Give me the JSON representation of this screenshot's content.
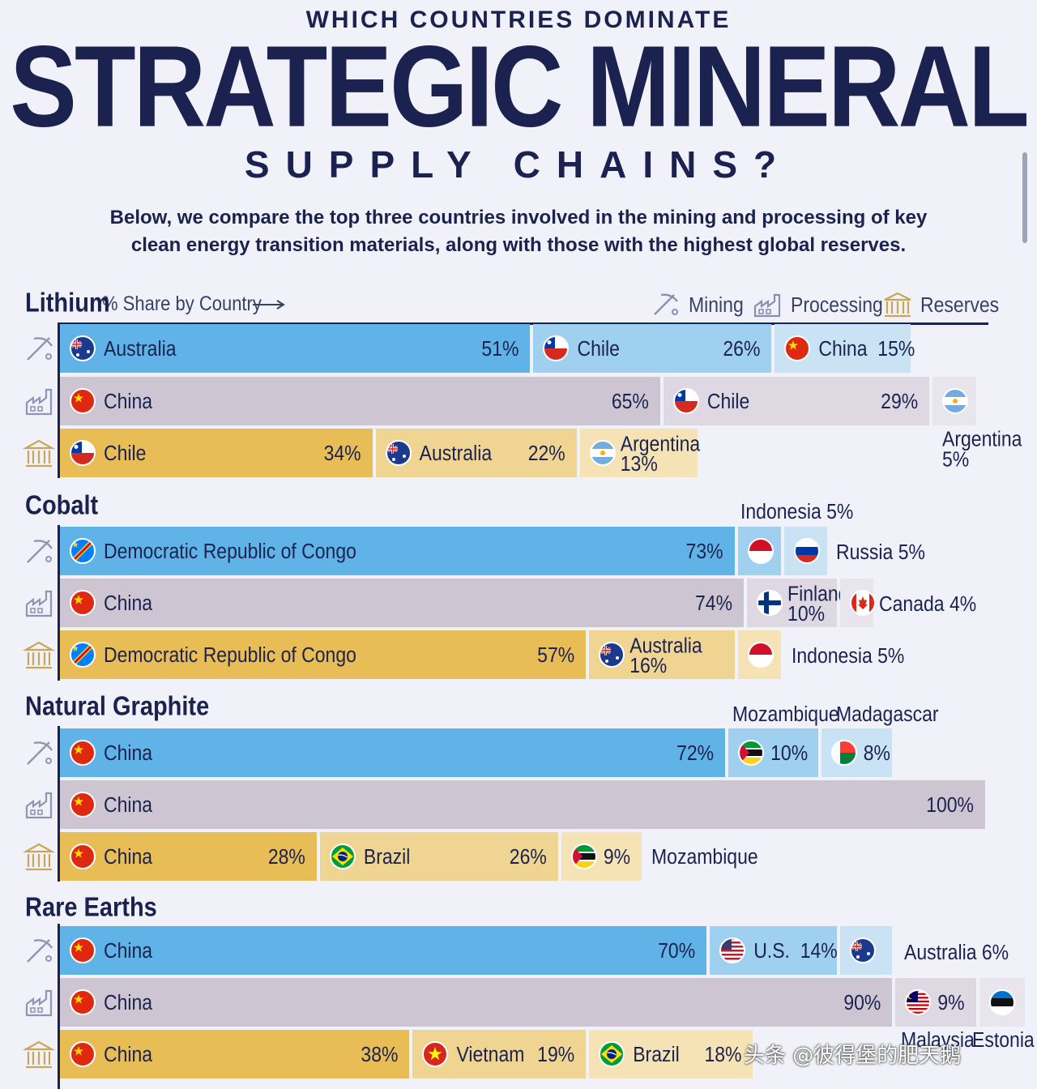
{
  "header": {
    "kicker": "WHICH COUNTRIES DOMINATE",
    "title": "STRATEGIC MINERAL",
    "subtitle": "SUPPLY CHAINS?",
    "intro_line1": "Below, we compare the top three countries involved in the mining and processing of key",
    "intro_line2": "clean energy transition materials, along with those with the highest global reserves."
  },
  "share_label": "% Share by Country",
  "legend": [
    {
      "label": "Mining",
      "icon": "pickaxe-icon"
    },
    {
      "label": "Processing",
      "icon": "factory-icon"
    },
    {
      "label": "Reserves",
      "icon": "bank-icon"
    }
  ],
  "colors": {
    "mining": [
      "#5fb3e6",
      "#9fd0ef",
      "#c9e3f4"
    ],
    "processing": [
      "#cdc6d2",
      "#ddd8e1",
      "#e8e5ec"
    ],
    "reserves": [
      "#e9bd55",
      "#f0d491",
      "#f5e3b6"
    ]
  },
  "chart_data": {
    "type": "bar",
    "title": "STRATEGIC MINERAL",
    "unit": "% Share by Country",
    "stages": [
      "Mining",
      "Processing",
      "Reserves"
    ],
    "minerals": [
      {
        "name": "Lithium",
        "rows": [
          {
            "stage": "Mining",
            "series": [
              {
                "country": "Australia",
                "value": 51,
                "label": "51%"
              },
              {
                "country": "Chile",
                "value": 26,
                "label": "26%"
              },
              {
                "country": "China",
                "value": 15,
                "label": "15%"
              }
            ]
          },
          {
            "stage": "Processing",
            "series": [
              {
                "country": "China",
                "value": 65,
                "label": "65%"
              },
              {
                "country": "Chile",
                "value": 29,
                "label": "29%"
              },
              {
                "country": "Argentina",
                "value": 5,
                "label": "5%"
              }
            ]
          },
          {
            "stage": "Reserves",
            "series": [
              {
                "country": "Chile",
                "value": 34,
                "label": "34%"
              },
              {
                "country": "Australia",
                "value": 22,
                "label": "22%"
              },
              {
                "country": "Argentina",
                "value": 13,
                "label": "13%"
              }
            ]
          }
        ]
      },
      {
        "name": "Cobalt",
        "rows": [
          {
            "stage": "Mining",
            "series": [
              {
                "country": "Democratic Republic of Congo",
                "value": 73,
                "label": "73%"
              },
              {
                "country": "Indonesia",
                "value": 5,
                "label": "5%"
              },
              {
                "country": "Russia",
                "value": 5,
                "label": "5%"
              }
            ]
          },
          {
            "stage": "Processing",
            "series": [
              {
                "country": "China",
                "value": 74,
                "label": "74%"
              },
              {
                "country": "Finland",
                "value": 10,
                "label": "10%"
              },
              {
                "country": "Canada",
                "value": 4,
                "label": "4%"
              }
            ]
          },
          {
            "stage": "Reserves",
            "series": [
              {
                "country": "Democratic Republic of Congo",
                "value": 57,
                "label": "57%"
              },
              {
                "country": "Australia",
                "value": 16,
                "label": "16%"
              },
              {
                "country": "Indonesia",
                "value": 5,
                "label": "5%"
              }
            ]
          }
        ]
      },
      {
        "name": "Natural Graphite",
        "rows": [
          {
            "stage": "Mining",
            "series": [
              {
                "country": "China",
                "value": 72,
                "label": "72%"
              },
              {
                "country": "Mozambique",
                "value": 10,
                "label": "10%"
              },
              {
                "country": "Madagascar",
                "value": 8,
                "label": "8%"
              }
            ]
          },
          {
            "stage": "Processing",
            "series": [
              {
                "country": "China",
                "value": 100,
                "label": "100%"
              }
            ]
          },
          {
            "stage": "Reserves",
            "series": [
              {
                "country": "China",
                "value": 28,
                "label": "28%"
              },
              {
                "country": "Brazil",
                "value": 26,
                "label": "26%"
              },
              {
                "country": "Mozambique",
                "value": 9,
                "label": "9%"
              }
            ]
          }
        ]
      },
      {
        "name": "Rare Earths",
        "rows": [
          {
            "stage": "Mining",
            "series": [
              {
                "country": "China",
                "value": 70,
                "label": "70%"
              },
              {
                "country": "U.S.",
                "value": 14,
                "label": "14%"
              },
              {
                "country": "Australia",
                "value": 6,
                "label": "6%"
              }
            ]
          },
          {
            "stage": "Processing",
            "series": [
              {
                "country": "China",
                "value": 90,
                "label": "90%"
              },
              {
                "country": "Malaysia",
                "value": 9,
                "label": "9%"
              },
              {
                "country": "Estonia",
                "value": null,
                "label": ""
              }
            ]
          },
          {
            "stage": "Reserves",
            "series": [
              {
                "country": "China",
                "value": 38,
                "label": "38%"
              },
              {
                "country": "Vietnam",
                "value": 19,
                "label": "19%"
              },
              {
                "country": "Brazil",
                "value": 18,
                "label": "18%"
              }
            ]
          }
        ]
      }
    ]
  },
  "watermark": "头条 @彼得堡的肥天鹅"
}
